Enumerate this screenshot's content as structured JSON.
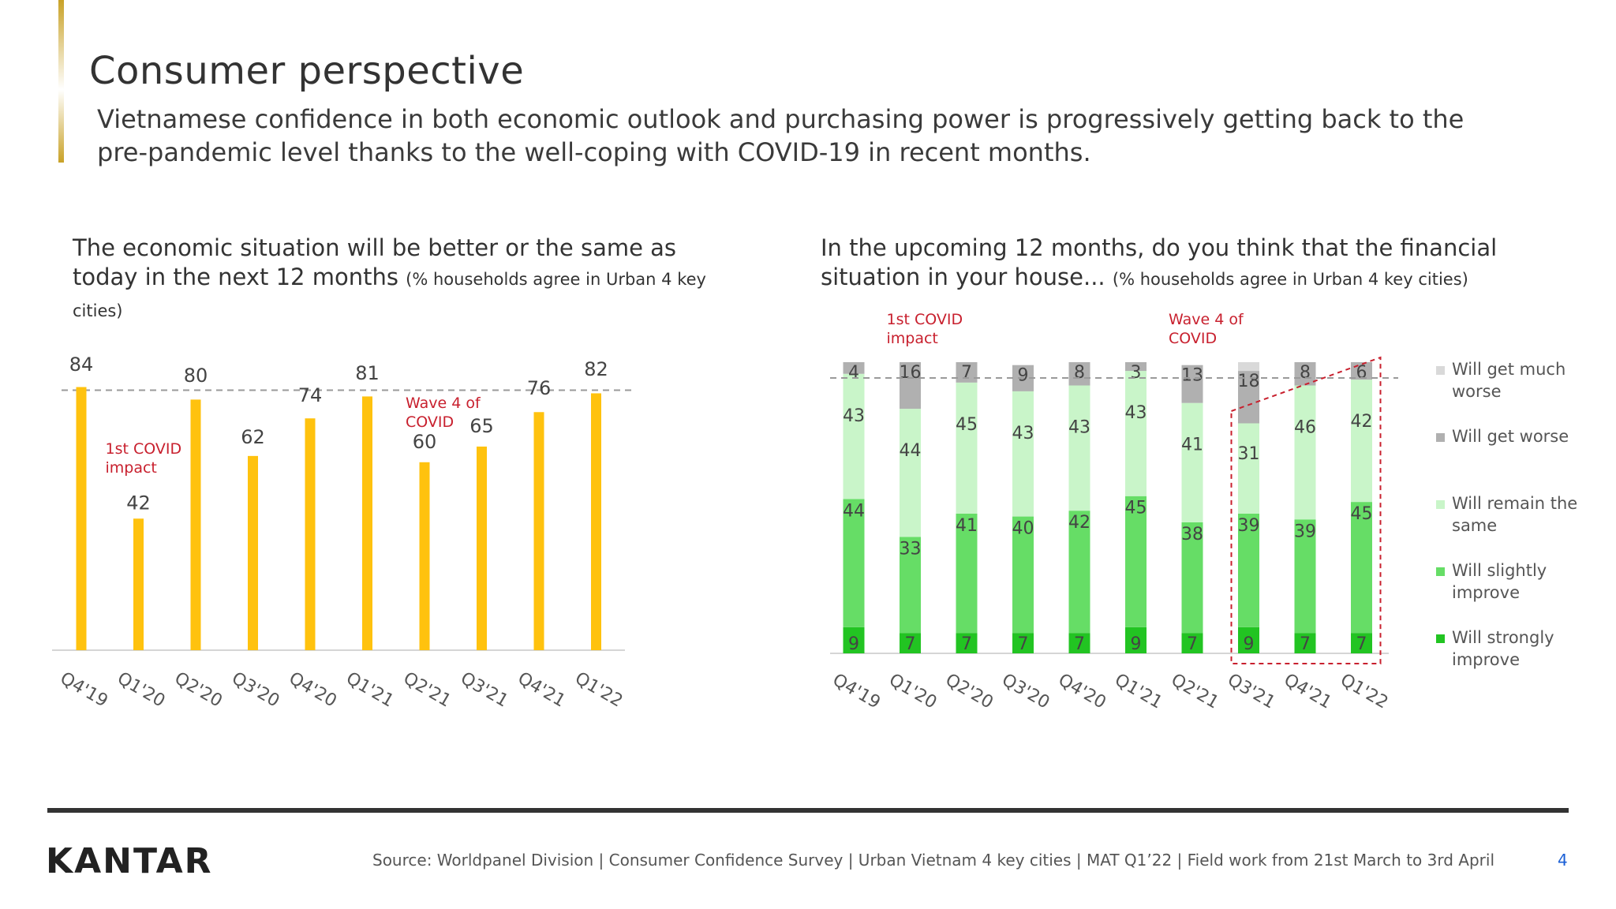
{
  "page": {
    "title": "Consumer perspective",
    "subtitle": "Vietnamese confidence in both economic outlook and purchasing power is progressively getting back to the pre-pandemic level thanks to the well-coping with COVID-19 in recent months.",
    "logo": "KANTAR",
    "source": "Source: Worldpanel Division | Consumer Confidence Survey | Urban Vietnam 4 key cities | MAT Q1’22 | Field work from 21st March to 3rd April",
    "page_number": "4"
  },
  "left_chart": {
    "heading_main": "The economic situation will be better or the same as today in the next 12 months",
    "heading_note": "(% households agree in Urban 4 key cities)"
  },
  "right_chart": {
    "heading_main": "In the upcoming 12 months, do you think that the financial situation in your house...",
    "heading_note": "(% households agree in Urban 4 key cities)"
  },
  "colors": {
    "bar_yellow": "#FFC20E",
    "much_worse": "#D9D9D9",
    "worse": "#B0B0B0",
    "remain_same": "#C9F5C9",
    "slightly_improve": "#66DD66",
    "strongly_improve": "#22C422",
    "annotation_red": "#C8202E"
  },
  "chart_data": [
    {
      "type": "bar",
      "categories": [
        "Q4'19",
        "Q1'20",
        "Q2'20",
        "Q3'20",
        "Q4'20",
        "Q1'21",
        "Q2'21",
        "Q3'21",
        "Q4'21",
        "Q1'22"
      ],
      "values": [
        84,
        42,
        80,
        62,
        74,
        81,
        60,
        65,
        76,
        82
      ],
      "ylim": [
        0,
        100
      ],
      "reference_line": "dashed",
      "annotations": [
        {
          "category": "Q1'20",
          "text": "1st COVID impact"
        },
        {
          "category": "Q2'21",
          "text": "Wave 4 of COVID"
        }
      ]
    },
    {
      "type": "bar",
      "stacked": true,
      "categories": [
        "Q4'19",
        "Q1'20",
        "Q2'20",
        "Q3'20",
        "Q4'20",
        "Q1'21",
        "Q2'21",
        "Q3'21",
        "Q4'21",
        "Q1'22"
      ],
      "series": [
        {
          "name": "Will strongly improve",
          "values": [
            9,
            7,
            7,
            7,
            7,
            9,
            7,
            9,
            7,
            7
          ]
        },
        {
          "name": "Will slightly improve",
          "values": [
            44,
            33,
            41,
            40,
            42,
            45,
            38,
            39,
            39,
            45
          ]
        },
        {
          "name": "Will remain the same",
          "values": [
            43,
            44,
            45,
            43,
            43,
            43,
            41,
            31,
            46,
            42
          ]
        },
        {
          "name": "Will get worse",
          "values": [
            4,
            16,
            7,
            9,
            8,
            3,
            13,
            18,
            8,
            6
          ]
        },
        {
          "name": "Will get much worse",
          "values": [
            0,
            0,
            0,
            0,
            0,
            0,
            0,
            3,
            0,
            0
          ]
        }
      ],
      "reference_line": "dashed",
      "annotations": [
        {
          "category": "Q1'20",
          "text": "1st COVID impact"
        },
        {
          "category": "Q2'21",
          "text": "Wave 4 of COVID"
        }
      ],
      "highlight": {
        "from": "Q3'21",
        "to": "Q1'22",
        "style": "red dashed outline"
      }
    }
  ]
}
